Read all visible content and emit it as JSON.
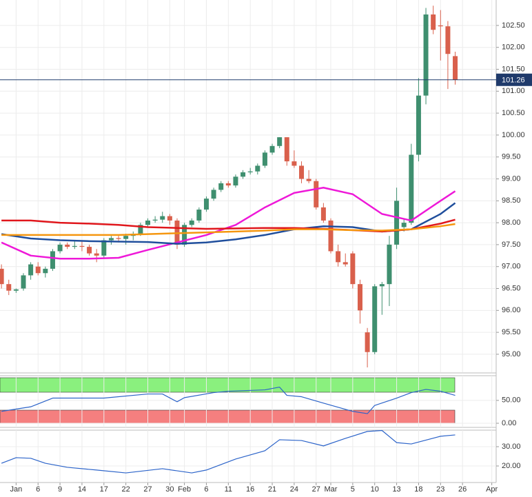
{
  "chart_data": [
    {
      "type": "candlestick",
      "x": [
        0,
        1,
        2,
        3,
        4,
        5,
        6,
        7,
        8,
        9,
        10,
        11,
        12,
        13,
        14,
        15,
        16,
        17,
        18,
        19,
        20,
        21,
        22,
        23,
        24,
        25,
        26,
        27,
        28,
        29,
        30,
        31,
        32,
        33,
        34,
        35,
        36,
        37,
        38,
        39,
        40,
        41,
        42,
        43,
        44,
        45,
        46,
        47,
        48,
        49,
        50,
        51,
        52,
        53,
        54,
        55,
        56,
        57,
        58,
        59,
        60,
        61,
        62
      ],
      "open": [
        96.95,
        96.6,
        96.45,
        96.5,
        96.8,
        97.0,
        96.85,
        96.95,
        97.35,
        97.5,
        97.45,
        97.47,
        97.45,
        97.3,
        97.25,
        97.6,
        97.65,
        97.63,
        97.7,
        97.75,
        97.95,
        98.05,
        98.07,
        98.15,
        98.05,
        97.5,
        97.95,
        98.05,
        98.3,
        98.55,
        98.75,
        98.9,
        98.85,
        99.05,
        99.15,
        99.17,
        99.3,
        99.6,
        99.75,
        99.95,
        99.4,
        99.3,
        99.0,
        98.95,
        98.35,
        98.05,
        97.35,
        97.1,
        97.3,
        96.6,
        95.5,
        95.05,
        96.55,
        96.6,
        97.5,
        97.9,
        98.0,
        99.55,
        100.9,
        102.75,
        102.5,
        102.48,
        101.8
      ],
      "high": [
        97.05,
        96.7,
        96.5,
        96.85,
        97.1,
        97.1,
        97.0,
        97.4,
        97.55,
        97.55,
        97.6,
        97.6,
        97.5,
        97.4,
        97.65,
        97.7,
        97.7,
        97.75,
        97.8,
        98.0,
        98.1,
        98.15,
        98.25,
        98.2,
        98.1,
        98.0,
        98.1,
        98.35,
        98.6,
        98.8,
        98.95,
        98.95,
        99.1,
        99.2,
        99.25,
        99.35,
        99.65,
        99.8,
        99.95,
        99.95,
        99.65,
        99.4,
        99.2,
        99.0,
        98.45,
        98.1,
        97.5,
        97.3,
        97.35,
        96.7,
        95.6,
        96.6,
        96.65,
        97.7,
        98.8,
        98.1,
        99.8,
        101.3,
        102.9,
        102.95,
        102.85,
        102.6,
        101.9
      ],
      "low": [
        96.5,
        96.35,
        96.4,
        96.45,
        96.7,
        96.8,
        96.75,
        96.9,
        97.3,
        97.4,
        97.4,
        97.35,
        97.25,
        97.1,
        97.2,
        97.5,
        97.55,
        97.5,
        97.6,
        97.7,
        97.9,
        98.0,
        98.0,
        97.95,
        97.4,
        97.45,
        97.9,
        98.0,
        98.25,
        98.5,
        98.7,
        98.8,
        98.8,
        99.0,
        99.1,
        99.1,
        99.25,
        99.55,
        99.7,
        99.3,
        99.25,
        98.9,
        98.9,
        98.3,
        98.0,
        97.3,
        97.0,
        97.0,
        96.5,
        95.7,
        94.7,
        95.0,
        95.9,
        96.1,
        97.4,
        97.8,
        97.95,
        99.4,
        100.7,
        102.3,
        101.7,
        101.05,
        101.15
      ],
      "close": [
        96.6,
        96.45,
        96.48,
        96.8,
        97.05,
        96.85,
        96.95,
        97.35,
        97.5,
        97.45,
        97.47,
        97.45,
        97.3,
        97.25,
        97.6,
        97.65,
        97.63,
        97.7,
        97.75,
        97.95,
        98.05,
        98.07,
        98.15,
        98.05,
        97.5,
        97.95,
        98.05,
        98.3,
        98.55,
        98.75,
        98.9,
        98.85,
        99.05,
        99.15,
        99.17,
        99.3,
        99.6,
        99.75,
        99.95,
        99.4,
        99.3,
        99.0,
        98.95,
        98.35,
        98.05,
        97.35,
        97.1,
        97.05,
        96.6,
        96.0,
        95.05,
        96.55,
        96.6,
        97.5,
        98.5,
        98.0,
        99.55,
        100.9,
        102.75,
        102.4,
        102.48,
        101.85,
        101.26
      ],
      "up_color": "#3f8f6f",
      "down_color": "#d9604c",
      "series": [
        {
          "color": "#ee18d8",
          "x": [
            0,
            4,
            8,
            12,
            16,
            20,
            24,
            28,
            32,
            36,
            40,
            44,
            48,
            52,
            56,
            60,
            62
          ],
          "values": [
            97.55,
            97.25,
            97.18,
            97.18,
            97.2,
            97.38,
            97.55,
            97.72,
            97.95,
            98.35,
            98.68,
            98.8,
            98.65,
            98.2,
            98.05,
            98.5,
            98.72
          ]
        },
        {
          "color": "#1f4e9c",
          "x": [
            0,
            4,
            8,
            12,
            16,
            20,
            24,
            28,
            32,
            36,
            40,
            44,
            48,
            52,
            56,
            60,
            62
          ],
          "values": [
            97.74,
            97.64,
            97.6,
            97.58,
            97.57,
            97.56,
            97.52,
            97.55,
            97.62,
            97.72,
            97.85,
            97.92,
            97.9,
            97.8,
            97.85,
            98.2,
            98.45
          ]
        },
        {
          "color": "#e0161b",
          "x": [
            0,
            4,
            8,
            12,
            16,
            20,
            24,
            28,
            32,
            36,
            40,
            44,
            48,
            52,
            56,
            60,
            62
          ],
          "values": [
            98.05,
            98.05,
            98.0,
            97.98,
            97.95,
            97.9,
            97.88,
            97.86,
            97.87,
            97.88,
            97.88,
            97.86,
            97.83,
            97.8,
            97.85,
            97.98,
            98.07
          ]
        },
        {
          "color": "#f5960f",
          "x": [
            0,
            4,
            8,
            12,
            16,
            20,
            24,
            28,
            32,
            36,
            40,
            44,
            48,
            52,
            56,
            60,
            62
          ],
          "values": [
            97.72,
            97.72,
            97.72,
            97.72,
            97.72,
            97.74,
            97.76,
            97.78,
            97.8,
            97.82,
            97.85,
            97.85,
            97.83,
            97.82,
            97.85,
            97.92,
            97.97
          ]
        }
      ],
      "last_price": 101.26,
      "xlim": [
        -0.2,
        67.6
      ],
      "ylim": [
        94.59,
        103.08
      ],
      "yticks": [
        {
          "value": 95,
          "label": "95.00"
        },
        {
          "value": 95.5,
          "label": "95.50"
        },
        {
          "value": 96,
          "label": "96.00"
        },
        {
          "value": 96.5,
          "label": "96.50"
        },
        {
          "value": 97,
          "label": "97.00"
        },
        {
          "value": 97.5,
          "label": "97.50"
        },
        {
          "value": 98,
          "label": "98.00"
        },
        {
          "value": 98.5,
          "label": "98.50"
        },
        {
          "value": 99,
          "label": "99.00"
        },
        {
          "value": 99.5,
          "label": "99.50"
        },
        {
          "value": 100,
          "label": "100.00"
        },
        {
          "value": 100.5,
          "label": "100.50"
        },
        {
          "value": 101,
          "label": "101.00"
        },
        {
          "value": 101.5,
          "label": "101.50"
        },
        {
          "value": 102,
          "label": "102.00"
        },
        {
          "value": 102.5,
          "label": "102.50"
        }
      ],
      "xticks": [
        {
          "value": 2,
          "label": "Jan"
        },
        {
          "value": 5,
          "label": "6"
        },
        {
          "value": 8,
          "label": "9"
        },
        {
          "value": 11,
          "label": "14"
        },
        {
          "value": 14,
          "label": "17"
        },
        {
          "value": 17,
          "label": "22"
        },
        {
          "value": 20,
          "label": "27"
        },
        {
          "value": 23,
          "label": "30"
        },
        {
          "value": 25,
          "label": "Feb"
        },
        {
          "value": 28,
          "label": "6"
        },
        {
          "value": 31,
          "label": "11"
        },
        {
          "value": 34,
          "label": "16"
        },
        {
          "value": 37,
          "label": "21"
        },
        {
          "value": 40,
          "label": "24"
        },
        {
          "value": 43,
          "label": "27"
        },
        {
          "value": 45,
          "label": "Mar"
        },
        {
          "value": 48,
          "label": "5"
        },
        {
          "value": 51,
          "label": "10"
        },
        {
          "value": 54,
          "label": "13"
        },
        {
          "value": 57,
          "label": "18"
        },
        {
          "value": 60,
          "label": "23"
        },
        {
          "value": 63,
          "label": "26"
        },
        {
          "value": 67,
          "label": "Apr"
        }
      ],
      "grid": true
    },
    {
      "type": "line",
      "series": [
        {
          "color": "#2b63c9",
          "x": [
            0,
            4,
            7,
            14,
            20,
            22,
            24,
            25,
            29,
            31,
            36,
            38,
            39,
            41,
            44,
            48,
            50,
            51,
            54,
            56,
            58,
            60,
            62
          ],
          "values": [
            26,
            36,
            55,
            55,
            64,
            64,
            47,
            56,
            67,
            70,
            73,
            79,
            61,
            58,
            44,
            26,
            21,
            39,
            55,
            67,
            74,
            70,
            61
          ]
        }
      ],
      "ylim": [
        -9,
        104
      ],
      "yticks": [
        {
          "value": 0,
          "label": "0.00"
        },
        {
          "value": 50,
          "label": "50.00"
        }
      ],
      "grid": true
    },
    {
      "type": "line",
      "series": [
        {
          "color": "#2b63c9",
          "x": [
            0,
            2,
            4,
            6,
            9,
            13,
            17,
            22,
            26,
            28,
            32,
            36,
            38,
            41,
            44,
            47,
            50,
            52,
            54,
            56,
            60,
            62
          ],
          "values": [
            21.4,
            24.3,
            24.0,
            21.4,
            19.3,
            17.9,
            16.4,
            18.6,
            16.4,
            17.9,
            23.6,
            27.9,
            33.6,
            33.2,
            30.4,
            34.3,
            37.9,
            38.4,
            32.1,
            31.4,
            35.4,
            36.1
          ]
        }
      ],
      "ylim": [
        11.43,
        38.57
      ],
      "yticks": [
        {
          "value": 20,
          "label": "20.00"
        },
        {
          "value": 30,
          "label": "30.00"
        }
      ],
      "grid": true
    }
  ]
}
